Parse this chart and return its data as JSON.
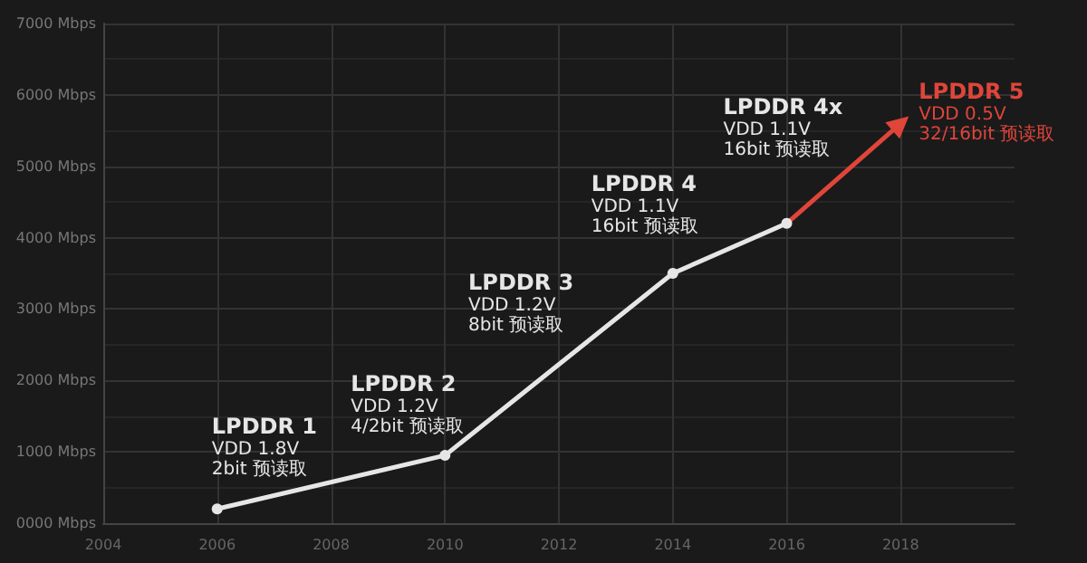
{
  "chart_data": {
    "type": "line",
    "x": [
      2006,
      2010,
      2014,
      2016
    ],
    "series": [
      {
        "color": "#e6e6e6",
        "values": [
          200,
          950,
          3500,
          4200
        ],
        "marker": "circle"
      },
      {
        "color": "#e0453a",
        "x": [
          2016,
          2018
        ],
        "values": [
          4200,
          5600
        ],
        "marker": "triangle"
      }
    ],
    "xlim": [
      2004,
      2020
    ],
    "xticks": [
      2004,
      2006,
      2008,
      2010,
      2012,
      2014,
      2016,
      2018
    ],
    "ylim": [
      0,
      7000
    ],
    "yticks": [
      {
        "value": 0,
        "label": "0000 Mbps"
      },
      {
        "value": 1000,
        "label": "1000 Mbps"
      },
      {
        "value": 2000,
        "label": "2000 Mbps"
      },
      {
        "value": 3000,
        "label": "3000 Mbps"
      },
      {
        "value": 4000,
        "label": "4000 Mbps"
      },
      {
        "value": 5000,
        "label": "5000 Mbps"
      },
      {
        "value": 6000,
        "label": "6000 Mbps"
      },
      {
        "value": 7000,
        "label": "7000 Mbps"
      }
    ],
    "grid": true,
    "line_style": "solid",
    "annotations": [
      {
        "text": "LPDDR 1\nVDD 1.8V\n2bit 预读取",
        "x": 2006,
        "y": 200
      },
      {
        "text": "LPDDR 2\nVDD 1.2V\n4/2bit 预读取",
        "x": 2010,
        "y": 950
      },
      {
        "text": "LPDDR 3\nVDD 1.2V\n8bit 预读取",
        "x": 2012,
        "y": 2225
      },
      {
        "text": "LPDDR 4\nVDD 1.1V\n16bit 预读取",
        "x": 2014,
        "y": 3500
      },
      {
        "text": "LPDDR 4x\nVDD 1.1V\n16bit 预读取",
        "x": 2016,
        "y": 4200
      },
      {
        "text": "LPDDR 5\nVDD 0.5V\n32/16bit 预读取",
        "x": 2018,
        "y": 5600
      }
    ]
  }
}
